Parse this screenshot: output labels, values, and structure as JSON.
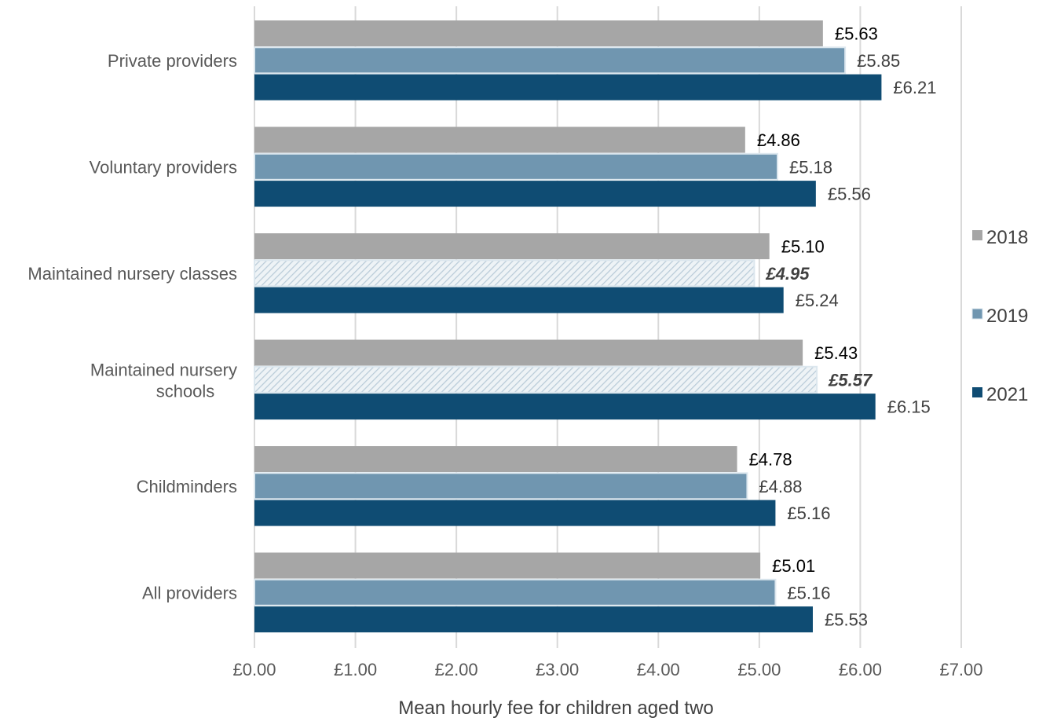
{
  "chart_data": {
    "type": "bar",
    "orientation": "horizontal",
    "title": "",
    "xlabel": "Mean hourly fee for children aged two",
    "ylabel": "",
    "xlim": [
      0,
      7
    ],
    "x_ticks": [
      "£0.00",
      "£1.00",
      "£2.00",
      "£3.00",
      "£4.00",
      "£5.00",
      "£6.00",
      "£7.00"
    ],
    "grid": "vertical",
    "legend_position": "right",
    "categories": [
      "Private providers",
      "Voluntary providers",
      "Maintained nursery classes",
      "Maintained nursery schools",
      "Childminders",
      "All providers"
    ],
    "series": [
      {
        "name": "2018",
        "color": "#a6a6a6",
        "values": [
          5.63,
          4.86,
          5.1,
          5.43,
          4.78,
          5.01
        ],
        "labels": [
          "£5.63",
          "£4.86",
          "£5.10",
          "£5.43",
          "£4.78",
          "£5.01"
        ],
        "hatched": [
          false,
          false,
          false,
          false,
          false,
          false
        ]
      },
      {
        "name": "2019",
        "color": "#7096b0",
        "values": [
          5.85,
          5.18,
          4.95,
          5.57,
          4.88,
          5.16
        ],
        "labels": [
          "£5.85",
          "£5.18",
          "£4.95",
          "£5.57",
          "£4.88",
          "£5.16"
        ],
        "hatched": [
          false,
          false,
          true,
          true,
          false,
          false
        ]
      },
      {
        "name": "2021",
        "color": "#0f4c73",
        "values": [
          6.21,
          5.56,
          5.24,
          6.15,
          5.16,
          5.53
        ],
        "labels": [
          "£6.21",
          "£5.56",
          "£5.24",
          "£6.15",
          "£5.16",
          "£5.53"
        ],
        "hatched": [
          false,
          false,
          false,
          false,
          false,
          false
        ]
      }
    ]
  }
}
